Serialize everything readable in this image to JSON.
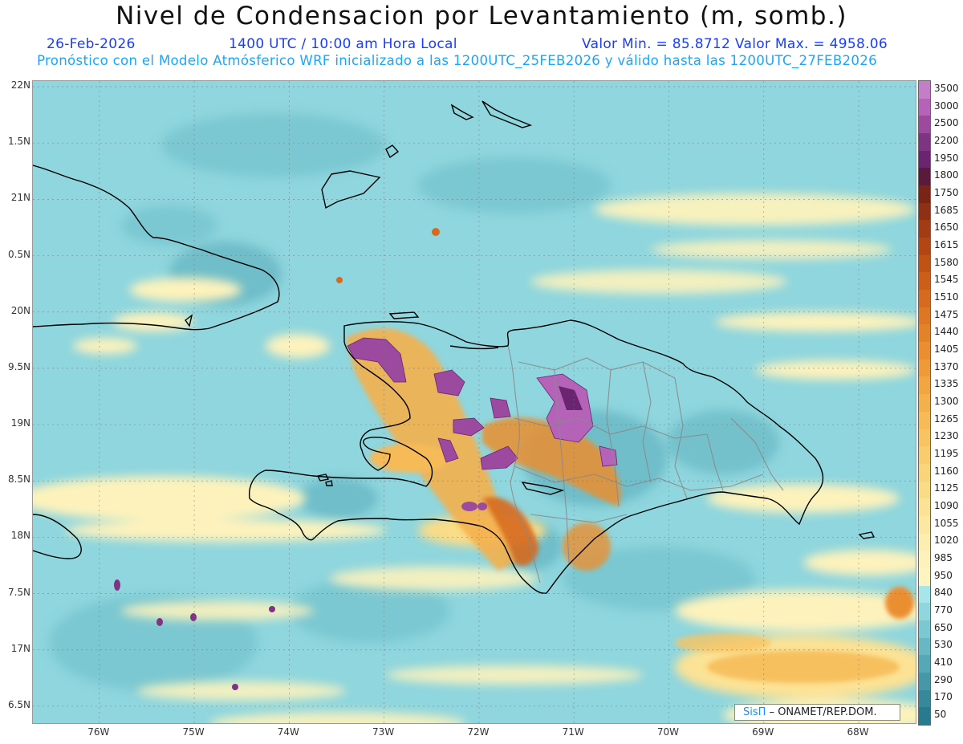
{
  "header": {
    "title": "Nivel de Condensacion por Levantamiento (m, somb.)",
    "date": "26-Feb-2026",
    "time": "1400 UTC / 10:00 am Hora Local",
    "minmax": "Valor Min. = 85.8712   Valor Max. = 4958.06",
    "forecast_note": "Pronóstico con el Modelo Atmósferico WRF inicializado a las 1200UTC_25FEB2026 y válido hasta las  1200UTC_27FEB2026"
  },
  "map": {
    "lat_labels": [
      "22N",
      "1.5N",
      "21N",
      "0.5N",
      "20N",
      "9.5N",
      "19N",
      "8.5N",
      "18N",
      "7.5N",
      "17N",
      "6.5N"
    ],
    "lon_labels": [
      "76W",
      "75W",
      "74W",
      "73W",
      "72W",
      "71W",
      "70W",
      "69W",
      "68W"
    ],
    "lat_values": [
      22,
      21.5,
      21,
      20.5,
      20,
      19.5,
      19,
      18.5,
      18,
      17.5,
      17,
      16.5
    ],
    "lon_values": [
      -76,
      -75,
      -74,
      -73,
      -72,
      -71,
      -70,
      -69,
      -68
    ],
    "extent": {
      "lon_min": -76.7,
      "lon_max": -67.4,
      "lat_min": 16.35,
      "lat_max": 22.05
    }
  },
  "colorbar": {
    "levels": [
      "3500",
      "3000",
      "2500",
      "2200",
      "1950",
      "1800",
      "1750",
      "1685",
      "1650",
      "1615",
      "1580",
      "1545",
      "1510",
      "1475",
      "1440",
      "1405",
      "1370",
      "1335",
      "1300",
      "1265",
      "1230",
      "1195",
      "1160",
      "1125",
      "1090",
      "1055",
      "1020",
      "985",
      "950",
      "840",
      "770",
      "650",
      "530",
      "410",
      "290",
      "170",
      "50"
    ],
    "colors": [
      "#c47ec7",
      "#b463b8",
      "#9b4aa0",
      "#7f3483",
      "#6a2470",
      "#5a1a3c",
      "#7a2416",
      "#8e3014",
      "#a23c14",
      "#b24614",
      "#c05216",
      "#cc5e1a",
      "#d66a1e",
      "#de7624",
      "#e4822a",
      "#ea8e30",
      "#ee9a38",
      "#f2a642",
      "#f4b04c",
      "#f6ba56",
      "#f8c462",
      "#f9cc6e",
      "#fad47a",
      "#fbdc86",
      "#fce294",
      "#fce8a2",
      "#fceeb0",
      "#fdf2bc",
      "#fdf4c2",
      "#a6e6ea",
      "#8fd6de",
      "#7cc8d2",
      "#68b8c4",
      "#56a8b6",
      "#4698a8",
      "#36889a",
      "#287a8e"
    ]
  },
  "credit": {
    "brand": "SisΠ",
    "text": " ONAMET/REP.DOM."
  }
}
